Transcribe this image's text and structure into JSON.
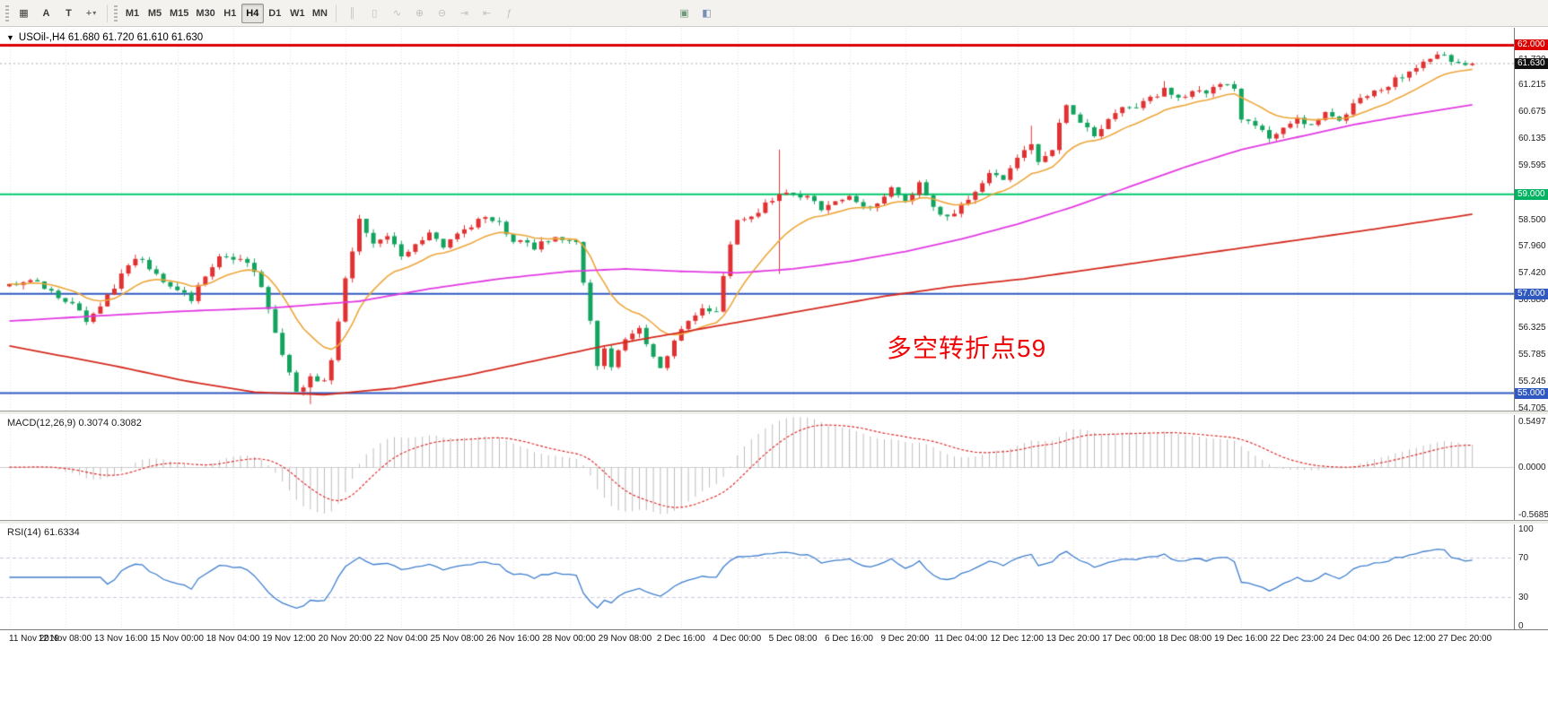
{
  "toolbar": {
    "left_tools": [
      {
        "name": "chart-grid-icon",
        "glyph": "▦"
      },
      {
        "name": "text-annotation-tool",
        "glyph": "A"
      },
      {
        "name": "text-tool",
        "glyph": "T"
      },
      {
        "name": "line-studies-tool",
        "glyph": "+",
        "dropdown": "▾"
      }
    ],
    "timeframes": [
      {
        "label": "M1"
      },
      {
        "label": "M5"
      },
      {
        "label": "M15"
      },
      {
        "label": "M30"
      },
      {
        "label": "H1"
      },
      {
        "label": "H4"
      },
      {
        "label": "D1"
      },
      {
        "label": "W1"
      },
      {
        "label": "MN"
      }
    ],
    "chart_tools": [
      {
        "name": "bar-chart-icon",
        "glyph": "║"
      },
      {
        "name": "candlestick-icon",
        "glyph": "▯"
      },
      {
        "name": "line-chart-icon",
        "glyph": "∿"
      },
      {
        "name": "zoom-in-icon",
        "glyph": "⊕"
      },
      {
        "name": "zoom-out-icon",
        "glyph": "⊖"
      },
      {
        "name": "auto-scroll-icon",
        "glyph": "⇥"
      },
      {
        "name": "chart-shift-icon",
        "glyph": "⇤"
      },
      {
        "name": "indicators-icon",
        "glyph": "ƒ"
      }
    ],
    "window_tools": [
      {
        "name": "template-icon",
        "glyph": "▣"
      },
      {
        "name": "profile-icon",
        "glyph": "◧"
      }
    ]
  },
  "chart": {
    "expander": "▼",
    "symbol_info": "USOil-,H4",
    "ohlc": "61.680 61.720 61.610 61.630",
    "annotation": "多空转折点59",
    "price_axis": {
      "ticks": [
        "61.720",
        "61.215",
        "60.675",
        "60.135",
        "59.595",
        "58.500",
        "57.960",
        "57.420",
        "56.880",
        "56.325",
        "55.785",
        "55.245",
        "54.705"
      ],
      "levels": [
        {
          "value": 62.0,
          "label": "62.000",
          "bg": "#dd0000",
          "line_color": "#dd0000",
          "line_width": 3
        },
        {
          "value": 61.63,
          "label": "61.630",
          "bg": "#111111",
          "line_color": "#aaaaaa",
          "line_width": 0,
          "dashed": true
        },
        {
          "value": 59.0,
          "label": "59.000",
          "bg": "#00b261",
          "line_color": "#00ca6d",
          "line_width": 2
        },
        {
          "value": 57.0,
          "label": "57.000",
          "bg": "#2f59c0",
          "line_color": "#2f59c0",
          "line_width": 2
        },
        {
          "value": 55.0,
          "label": "55.000",
          "bg": "#2f59c0",
          "line_color": "#2f59c0",
          "line_width": 2
        }
      ]
    },
    "time_axis": [
      "11 Nov 2019",
      "12 Nov 08:00",
      "13 Nov 16:00",
      "15 Nov 00:00",
      "18 Nov 04:00",
      "19 Nov 12:00",
      "20 Nov 20:00",
      "22 Nov 04:00",
      "25 Nov 08:00",
      "26 Nov 16:00",
      "28 Nov 00:00",
      "29 Nov 08:00",
      "2 Dec 16:00",
      "4 Dec 00:00",
      "5 Dec 08:00",
      "6 Dec 16:00",
      "9 Dec 20:00",
      "11 Dec 04:00",
      "12 Dec 12:00",
      "13 Dec 20:00",
      "17 Dec 00:00",
      "18 Dec 08:00",
      "19 Dec 16:00",
      "22 Dec 23:00",
      "24 Dec 04:00",
      "26 Dec 12:00",
      "27 Dec 20:00"
    ]
  },
  "macd": {
    "label": "MACD(12,26,9) 0.3074 0.3082",
    "axis": [
      "0.5497",
      "0.0000",
      "-0.5685"
    ],
    "range": [
      0.5497,
      -0.5685
    ],
    "fast": 12,
    "slow": 26,
    "signal": 9
  },
  "rsi": {
    "label": "RSI(14) 61.6334",
    "axis": [
      "100",
      "70",
      "30",
      "0"
    ],
    "levels": [
      70,
      30
    ],
    "period": 14
  },
  "chart_data": {
    "type": "candlestick",
    "symbol": "USOil-",
    "timeframe": "H4",
    "bars": 210,
    "visible_price_range": [
      54.65,
      62.35
    ],
    "last_close": 61.63,
    "seed": 20191227,
    "close_anchors": [
      [
        0,
        57.15
      ],
      [
        3,
        57.32
      ],
      [
        6,
        57.05
      ],
      [
        9,
        56.8
      ],
      [
        11,
        56.45
      ],
      [
        13,
        56.75
      ],
      [
        16,
        57.35
      ],
      [
        18,
        57.75
      ],
      [
        20,
        57.55
      ],
      [
        22,
        57.25
      ],
      [
        26,
        56.9
      ],
      [
        28,
        57.35
      ],
      [
        30,
        57.75
      ],
      [
        33,
        57.7
      ],
      [
        35,
        57.45
      ],
      [
        37,
        56.7
      ],
      [
        39,
        55.8
      ],
      [
        41,
        55.05
      ],
      [
        43,
        55.3
      ],
      [
        45,
        55.25
      ],
      [
        46,
        55.7
      ],
      [
        48,
        57.3
      ],
      [
        50,
        58.5
      ],
      [
        52,
        58.05
      ],
      [
        54,
        58.15
      ],
      [
        56,
        57.75
      ],
      [
        58,
        58.05
      ],
      [
        60,
        58.2
      ],
      [
        62,
        57.95
      ],
      [
        64,
        58.15
      ],
      [
        66,
        58.35
      ],
      [
        68,
        58.55
      ],
      [
        70,
        58.4
      ],
      [
        72,
        58.1
      ],
      [
        75,
        57.95
      ],
      [
        78,
        58.1
      ],
      [
        81,
        58.0
      ],
      [
        83,
        56.4
      ],
      [
        84,
        55.55
      ],
      [
        85,
        55.85
      ],
      [
        86,
        55.55
      ],
      [
        88,
        56.1
      ],
      [
        90,
        56.3
      ],
      [
        91,
        55.95
      ],
      [
        93,
        55.5
      ],
      [
        95,
        56.05
      ],
      [
        97,
        56.45
      ],
      [
        99,
        56.65
      ],
      [
        101,
        56.7
      ],
      [
        103,
        58.0
      ],
      [
        104,
        58.45
      ],
      [
        106,
        58.5
      ],
      [
        108,
        58.8
      ],
      [
        110,
        59.05
      ],
      [
        112,
        58.95
      ],
      [
        114,
        59.0
      ],
      [
        116,
        58.7
      ],
      [
        118,
        58.85
      ],
      [
        120,
        58.95
      ],
      [
        122,
        58.7
      ],
      [
        124,
        58.85
      ],
      [
        126,
        59.1
      ],
      [
        128,
        58.9
      ],
      [
        130,
        59.2
      ],
      [
        132,
        58.75
      ],
      [
        134,
        58.5
      ],
      [
        136,
        58.75
      ],
      [
        138,
        59.1
      ],
      [
        140,
        59.4
      ],
      [
        142,
        59.3
      ],
      [
        144,
        59.7
      ],
      [
        146,
        60.0
      ],
      [
        147,
        59.65
      ],
      [
        149,
        59.95
      ],
      [
        151,
        60.85
      ],
      [
        153,
        60.4
      ],
      [
        155,
        60.2
      ],
      [
        157,
        60.5
      ],
      [
        159,
        60.75
      ],
      [
        161,
        60.7
      ],
      [
        163,
        60.95
      ],
      [
        165,
        61.1
      ],
      [
        167,
        60.9
      ],
      [
        169,
        61.1
      ],
      [
        171,
        61.0
      ],
      [
        173,
        61.25
      ],
      [
        175,
        61.1
      ],
      [
        176,
        60.5
      ],
      [
        178,
        60.35
      ],
      [
        180,
        60.15
      ],
      [
        182,
        60.35
      ],
      [
        184,
        60.5
      ],
      [
        186,
        60.4
      ],
      [
        188,
        60.6
      ],
      [
        190,
        60.5
      ],
      [
        192,
        60.8
      ],
      [
        194,
        61.0
      ],
      [
        196,
        61.1
      ],
      [
        198,
        61.3
      ],
      [
        200,
        61.5
      ],
      [
        202,
        61.65
      ],
      [
        204,
        61.8
      ],
      [
        206,
        61.7
      ],
      [
        208,
        61.55
      ],
      [
        209,
        61.63
      ]
    ],
    "wick_events": {
      "43": {
        "low": 54.78
      },
      "110": {
        "high": 59.9,
        "low": 57.4
      },
      "146": {
        "high": 60.38
      },
      "165": {
        "high": 61.28
      }
    },
    "ma_fast_period": 13,
    "ma_mid_anchors": [
      [
        0,
        56.45
      ],
      [
        12,
        56.55
      ],
      [
        25,
        56.65
      ],
      [
        38,
        56.72
      ],
      [
        50,
        56.85
      ],
      [
        60,
        57.1
      ],
      [
        70,
        57.3
      ],
      [
        80,
        57.45
      ],
      [
        88,
        57.5
      ],
      [
        96,
        57.45
      ],
      [
        104,
        57.42
      ],
      [
        112,
        57.5
      ],
      [
        120,
        57.65
      ],
      [
        128,
        57.85
      ],
      [
        136,
        58.1
      ],
      [
        144,
        58.4
      ],
      [
        152,
        58.75
      ],
      [
        160,
        59.15
      ],
      [
        168,
        59.55
      ],
      [
        176,
        59.9
      ],
      [
        184,
        60.15
      ],
      [
        192,
        60.4
      ],
      [
        200,
        60.6
      ],
      [
        209,
        60.8
      ]
    ],
    "ma_slow_anchors": [
      [
        0,
        55.95
      ],
      [
        15,
        55.55
      ],
      [
        25,
        55.25
      ],
      [
        35,
        55.02
      ],
      [
        45,
        54.97
      ],
      [
        55,
        55.1
      ],
      [
        65,
        55.35
      ],
      [
        75,
        55.65
      ],
      [
        85,
        55.95
      ],
      [
        95,
        56.2
      ],
      [
        105,
        56.45
      ],
      [
        115,
        56.7
      ],
      [
        125,
        56.95
      ],
      [
        135,
        57.15
      ],
      [
        145,
        57.3
      ],
      [
        155,
        57.5
      ],
      [
        165,
        57.7
      ],
      [
        175,
        57.9
      ],
      [
        185,
        58.1
      ],
      [
        195,
        58.3
      ],
      [
        202,
        58.45
      ],
      [
        209,
        58.6
      ]
    ],
    "colors": {
      "up": "#e03232",
      "down": "#14a35f",
      "ma_fast": "#eda63a",
      "ma_mid": "#e23ae2",
      "ma_slow": "#d42a1e",
      "macd_hist": "#bdbdbd",
      "macd_signal": "#e03030",
      "rsi": "#3f7fce",
      "rsi_levels": "#c9c9e0",
      "grid": "#e3e3e3"
    }
  }
}
